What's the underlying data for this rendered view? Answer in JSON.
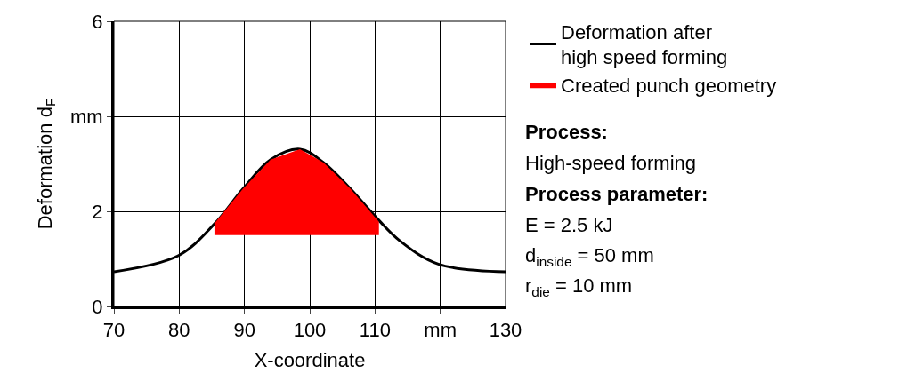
{
  "chart_data": {
    "type": "line",
    "xlabel": "X-coordinate",
    "ylabel": "Deformation d$_{F}$",
    "xlim": [
      70,
      130
    ],
    "ylim": [
      0,
      6
    ],
    "xticks": [
      70,
      80,
      90,
      100,
      110,
      {
        "value": 120,
        "label": "mm"
      },
      130
    ],
    "yticks": [
      0,
      2,
      {
        "value": 4,
        "label": "mm"
      },
      6
    ],
    "grid": true,
    "legend": "top right",
    "line_style": "solid",
    "marker": "none",
    "series": [
      {
        "name": "Deformation after high speed forming",
        "color": "#000000",
        "type": "line",
        "x": [
          70,
          79.9,
          85.5,
          89.8,
          94.0,
          98.5,
          102.1,
          106.2,
          109.8,
          113.8,
          119.7,
          130
        ],
        "values": [
          0.73,
          1.07,
          1.75,
          2.48,
          3.09,
          3.31,
          3.03,
          2.48,
          1.93,
          1.38,
          0.89,
          0.73
        ]
      },
      {
        "name": "Created punch geometry",
        "color": "#ff0000",
        "type": "area",
        "x": [
          85.4,
          85.4,
          89.8,
          94.0,
          98.5,
          102.1,
          106.2,
          110.6,
          110.6
        ],
        "values": [
          1.5,
          1.75,
          2.48,
          3.09,
          3.31,
          3.03,
          2.48,
          1.78,
          1.5
        ]
      }
    ],
    "annotations": [
      "Process:",
      "High-speed forming",
      "Process parameter:",
      "E = 2.5 kJ",
      "d$_{inside}$ = 50 mm",
      "r$_{die}$ = 10 mm"
    ]
  }
}
